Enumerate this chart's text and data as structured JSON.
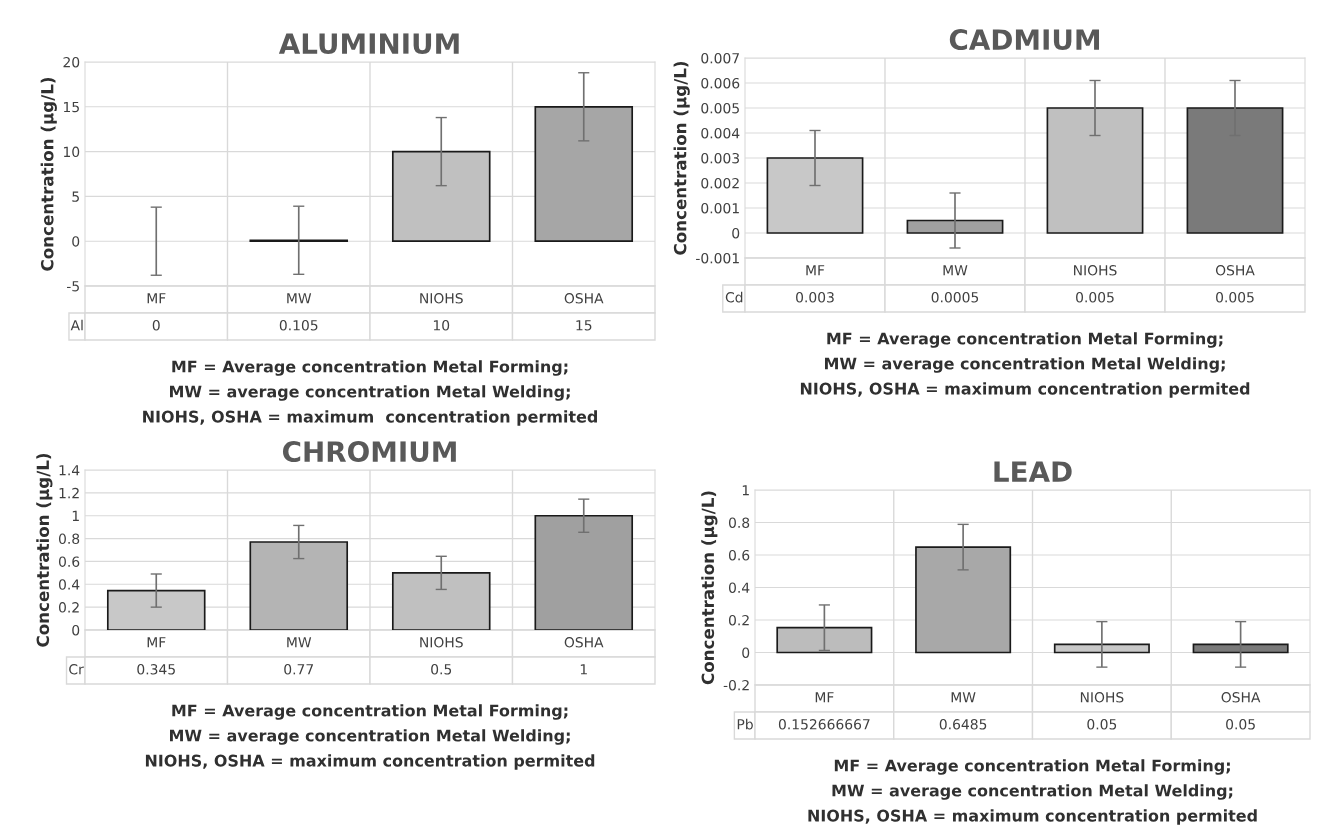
{
  "chart_data": [
    {
      "type": "bar",
      "title": "ALUMINIUM",
      "ylabel": "Concentration (µg/L)",
      "categories": [
        "MF",
        "MW",
        "NIOHS",
        "OSHA"
      ],
      "series": [
        {
          "name": "Al",
          "values": [
            0,
            0.105,
            10,
            15
          ],
          "colors": [
            "#c8c8c8",
            "#5a5a5a",
            "#c0c0c0",
            "#a6a6a6"
          ],
          "errors": [
            3.8,
            3.8,
            3.8,
            3.8
          ]
        }
      ],
      "ylim": [
        -5,
        20
      ],
      "yticks": [
        -5,
        0,
        5,
        10,
        15,
        20
      ],
      "grid": true,
      "data_labels": true,
      "annotations": [
        "MF = Average concentration Metal Forming;",
        "MW = average concentration Metal Welding;",
        "NIOHS, OSHA = maximum  concentration permited"
      ]
    },
    {
      "type": "bar",
      "title": "CADMIUM",
      "ylabel": "Concentration (µg/L)",
      "categories": [
        "MF",
        "MW",
        "NIOHS",
        "OSHA"
      ],
      "series": [
        {
          "name": "Cd",
          "values": [
            0.003,
            0.0005,
            0.005,
            0.005
          ],
          "colors": [
            "#c8c8c8",
            "#a0a0a0",
            "#c0c0c0",
            "#7a7a7a"
          ],
          "errors": [
            0.0011,
            0.0011,
            0.0011,
            0.0011
          ]
        }
      ],
      "ylim": [
        -0.001,
        0.007
      ],
      "yticks": [
        -0.001,
        0,
        0.001,
        0.002,
        0.003,
        0.004,
        0.005,
        0.006,
        0.007
      ],
      "grid": true,
      "data_labels": true,
      "annotations": [
        "MF = Average concentration Metal Forming;",
        "MW = average concentration Metal Welding;",
        "NIOHS, OSHA = maximum concentration permited"
      ]
    },
    {
      "type": "bar",
      "title": "CHROMIUM",
      "ylabel": "Concentration (µg/L)",
      "categories": [
        "MF",
        "MW",
        "NIOHS",
        "OSHA"
      ],
      "series": [
        {
          "name": "Cr",
          "values": [
            0.345,
            0.77,
            0.5,
            1
          ],
          "colors": [
            "#c8c8c8",
            "#b4b4b4",
            "#c0c0c0",
            "#a0a0a0"
          ],
          "errors": [
            0.145,
            0.145,
            0.145,
            0.145
          ]
        }
      ],
      "ylim": [
        0,
        1.4
      ],
      "yticks": [
        0,
        0.2,
        0.4,
        0.6,
        0.8,
        1,
        1.2,
        1.4
      ],
      "grid": true,
      "data_labels": true,
      "annotations": [
        "MF = Average concentration Metal Forming;",
        "MW = average concentration Metal Welding;",
        "NIOHS, OSHA = maximum concentration permited"
      ]
    },
    {
      "type": "bar",
      "title": "LEAD",
      "ylabel": "Concentration (µg/L)",
      "categories": [
        "MF",
        "MW",
        "NIOHS",
        "OSHA"
      ],
      "series": [
        {
          "name": "Pb",
          "values": [
            0.152666667,
            0.6485,
            0.05,
            0.05
          ],
          "colors": [
            "#bcbcbc",
            "#a8a8a8",
            "#c8c8c8",
            "#7a7a7a"
          ],
          "errors": [
            0.14,
            0.14,
            0.14,
            0.14
          ]
        }
      ],
      "ylim": [
        -0.2,
        1
      ],
      "yticks": [
        -0.2,
        0,
        0.2,
        0.4,
        0.6,
        0.8,
        1
      ],
      "grid": true,
      "data_labels": true,
      "annotations": [
        "MF = Average concentration Metal Forming;",
        "MW = average concentration Metal Welding;",
        "NIOHS, OSHA = maximum concentration permited"
      ]
    }
  ]
}
